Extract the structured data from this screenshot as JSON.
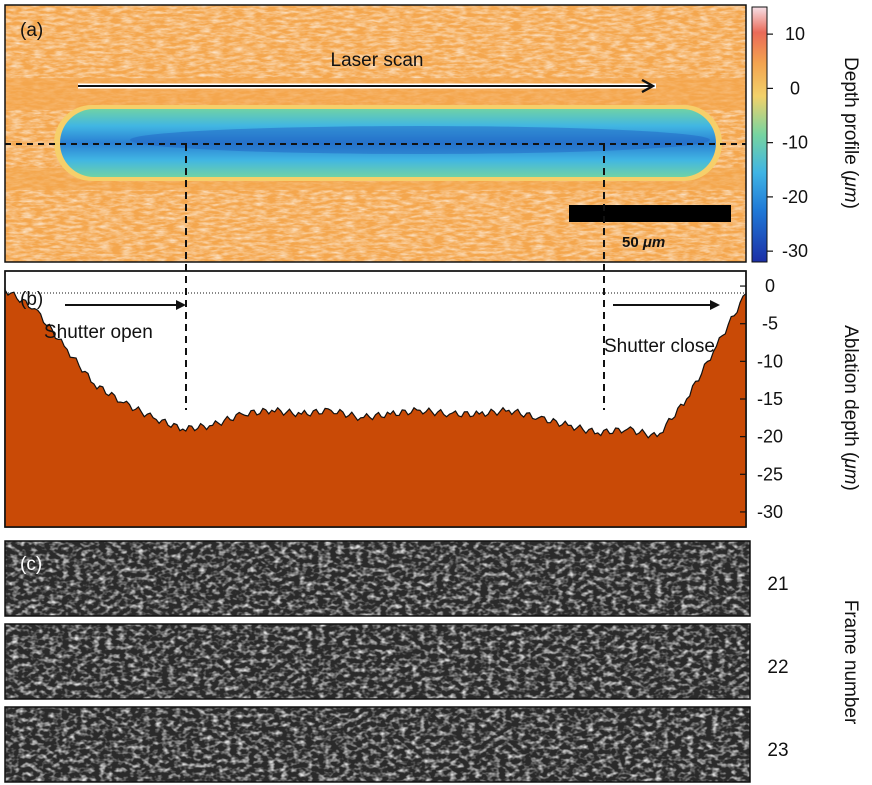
{
  "panels": {
    "a": {
      "label": "(a)",
      "laser_scan": "Laser scan",
      "scalebar_value": "50 ",
      "scalebar_unit": "μm",
      "colorbar_title_prefix": "Depth profile (",
      "colorbar_unit": "μm",
      "colorbar_title_suffix": ")",
      "colorbar_ticks": [
        "10",
        "0",
        "-10",
        "-20",
        "-30"
      ],
      "colorbar_range": [
        -32,
        15
      ],
      "colormap_stops": [
        "#1c2fa6",
        "#1f78d6",
        "#3fb4e4",
        "#77d4a0",
        "#f2d16a",
        "#f3a34f",
        "#ea6a58",
        "#f6dfe6"
      ]
    },
    "b": {
      "label": "(b)",
      "shutter_open": "Shutter open",
      "shutter_close": "Shutter close",
      "ylabel_prefix": "Ablation depth (",
      "ylabel_unit": "μm",
      "ylabel_suffix": ")",
      "yticks": [
        "0",
        "-5",
        "-10",
        "-15",
        "-20",
        "-25",
        "-30"
      ],
      "fill_color": "#c94a06"
    },
    "c": {
      "label": "(c)",
      "frames": [
        "21",
        "22",
        "23"
      ],
      "axis_label": "Frame number"
    }
  },
  "chart_data": {
    "type": "area",
    "title": "",
    "xlabel": "",
    "ylabel": "Ablation depth (μm)",
    "ylim": [
      -32,
      2
    ],
    "x": [
      0,
      4,
      8,
      12,
      16,
      20,
      24,
      28,
      32,
      36,
      40,
      44,
      48,
      52,
      56,
      60,
      64,
      68,
      72,
      76,
      80,
      84,
      88,
      92,
      96,
      100
    ],
    "series": [
      {
        "values": [
          -0.5,
          -3,
          -8,
          -13,
          -15.5,
          -17.5,
          -19,
          -18.5,
          -17,
          -16.5,
          -17,
          -16.5,
          -17.5,
          -17,
          -16.5,
          -17,
          -17,
          -16.5,
          -17.5,
          -18.5,
          -19.5,
          -19,
          -20,
          -15,
          -8,
          -1
        ]
      }
    ]
  }
}
